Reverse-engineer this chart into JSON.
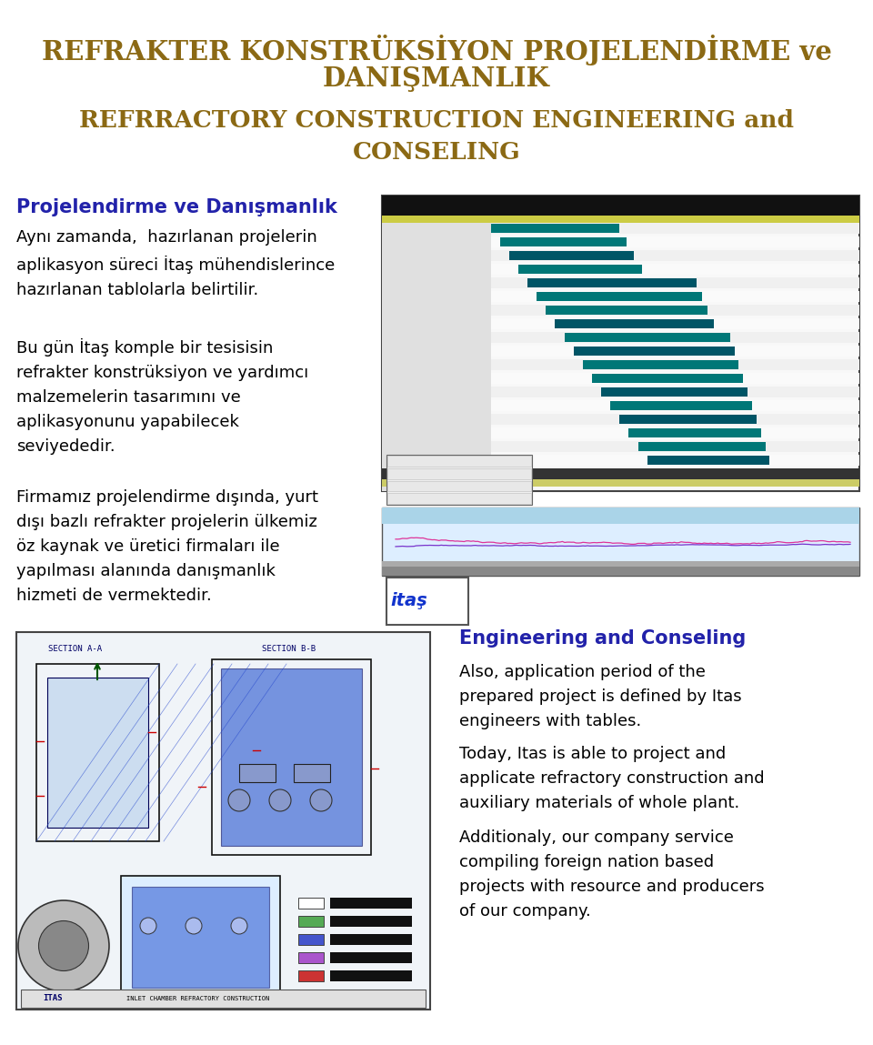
{
  "title_line1": "REFRAKTER KONSTRÜKSİYON PROJELENDİRME ve",
  "title_line2": "DANIŞMANLIK",
  "subtitle_line1": "REFRRACTORY CONSTRUCTION ENGINEERING and",
  "subtitle_line2": "CONSELING",
  "title_color": "#8B6914",
  "subtitle_color": "#8B6914",
  "section_heading1": "Projelendirme ve Danışmanlık",
  "section_heading_color": "#2222aa",
  "para1": "Aynı zamanda,  hazırlanan projelerin\naplikasyon süreci İtaş mühendislerince\nhazırlanan tablolarla belirtilir.",
  "para2": "Bu gün İtaş komple bir tesisisin\nrefrakter konstrüksiyon ve yardımcı\nmalzemelerin tasarımını ve\naplikasyonunu yapabilecek\nseviyededir.",
  "para3": "Firmamız projelendirme dışında, yurt\ndışı bazlı refrakter projelerin ülkemiz\nöz kaynak ve üretici firmaları ile\nyapılması alanında danışmanlık\nhizmeti de vermektedir.",
  "section_heading2": "Engineering and Conseling",
  "section_heading2_color": "#2222aa",
  "eng_para1": "Also, application period of the\nprepared project is defined by Itas\nengineers with tables.",
  "eng_para2": "Today, Itas is able to project and\napplicate refractory construction and\nauxiliary materials of whole plant.",
  "eng_para3": "Additionaly, our company service\ncompiling foreign nation based\nprojects with resource and producers\nof our company.",
  "background_color": "#ffffff",
  "text_color": "#000000",
  "body_fontsize": 13,
  "title_fontsize": 21,
  "subtitle_fontsize": 19,
  "heading_fontsize": 15
}
